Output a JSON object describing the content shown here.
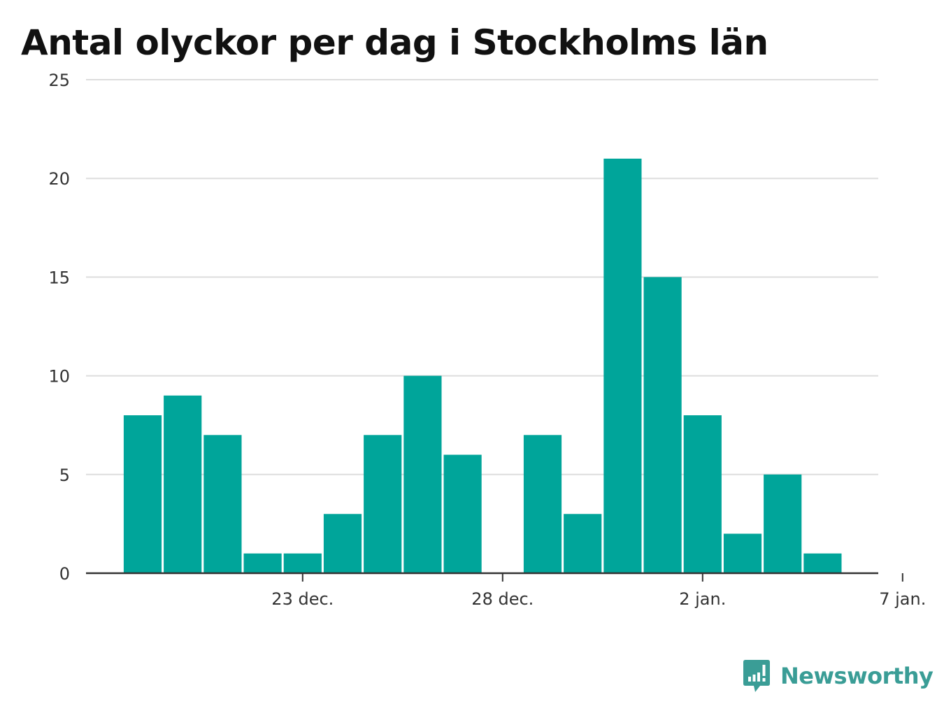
{
  "title": "Antal olyckor per dag i Stockholms län",
  "brand": {
    "name": "Newsworthy",
    "icon": "newsworthy-logo-icon",
    "color": "#3a9d96"
  },
  "chart_data": {
    "type": "bar",
    "title": "Antal olyckor per dag i Stockholms län",
    "xlabel": "",
    "ylabel": "",
    "x": [
      "2022-12-19",
      "2022-12-20",
      "2022-12-21",
      "2022-12-22",
      "2022-12-23",
      "2022-12-24",
      "2022-12-25",
      "2022-12-26",
      "2022-12-27",
      "2022-12-28",
      "2022-12-29",
      "2022-12-30",
      "2022-12-31",
      "2023-01-01",
      "2023-01-02",
      "2023-01-03",
      "2023-01-04",
      "2023-01-05",
      "2023-01-06"
    ],
    "values": [
      8,
      9,
      7,
      1,
      1,
      3,
      7,
      10,
      6,
      0,
      7,
      3,
      21,
      15,
      8,
      2,
      5,
      1,
      0
    ],
    "ylim": [
      0,
      25
    ],
    "yticks": [
      0,
      5,
      10,
      15,
      20,
      25
    ],
    "xticks": [
      {
        "date": "2022-12-23",
        "label": "23 dec."
      },
      {
        "date": "2022-12-28",
        "label": "28 dec."
      },
      {
        "date": "2023-01-02",
        "label": "2 jan."
      },
      {
        "date": "2023-01-07",
        "label": "7 jan."
      }
    ],
    "grid": true,
    "legend": "none",
    "bar_color": "#00a59a",
    "grid_color": "#dddddd",
    "axis_color": "#333333"
  }
}
